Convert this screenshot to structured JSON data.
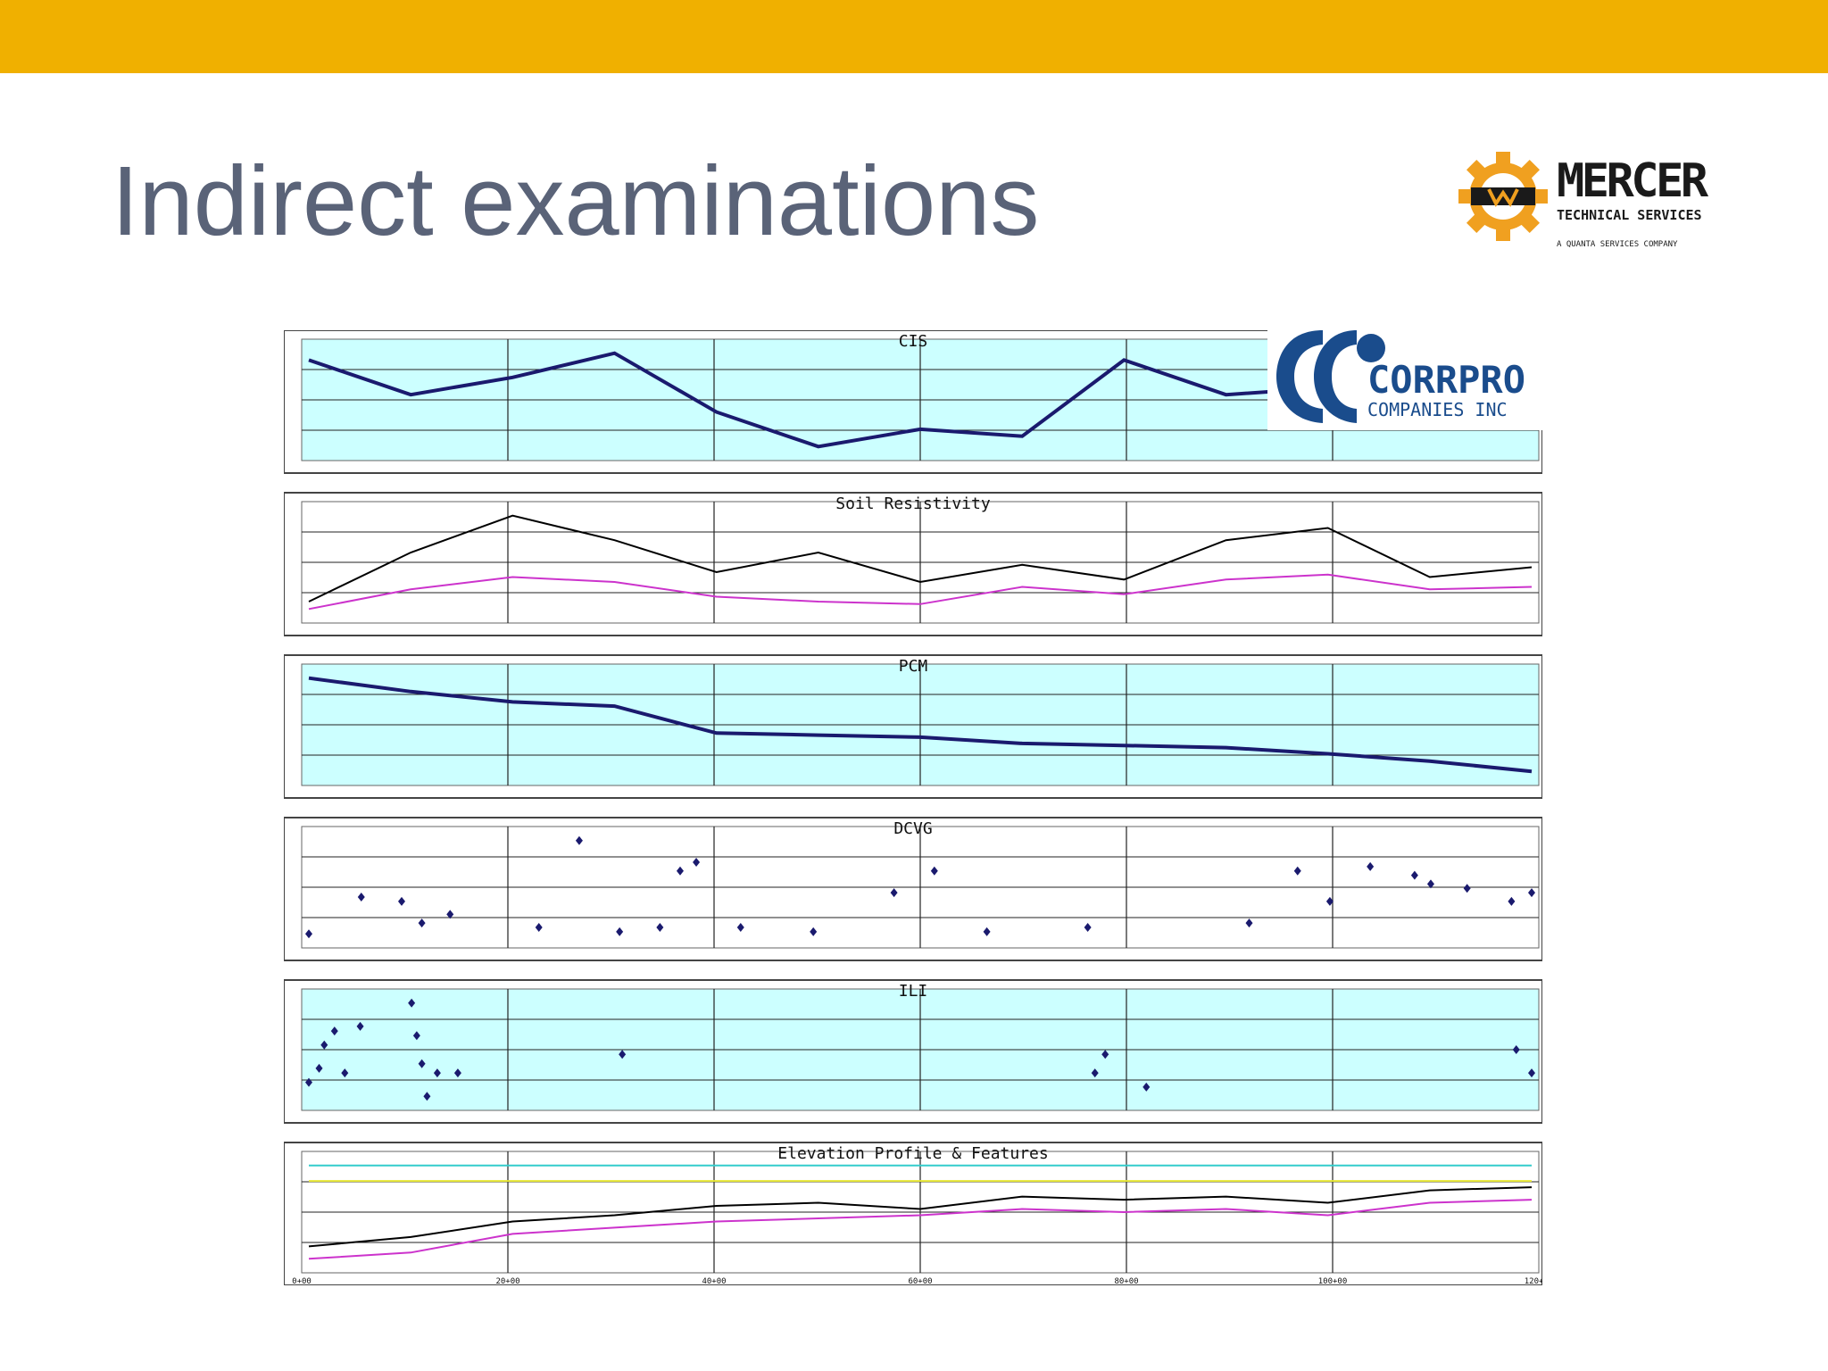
{
  "slide": {
    "title": "Indirect examinations",
    "bar_color": "#f0b000",
    "title_color": "#5a6378"
  },
  "logos": {
    "mercer": {
      "name": "MERCER",
      "subtitle": "TECHNICAL SERVICES",
      "tagline": "A QUANTA SERVICES COMPANY",
      "gear_color": "#f0a020"
    },
    "corrpro": {
      "name": "CORRPRO",
      "subtitle": "COMPANIES INC",
      "color": "#1a4c8c"
    }
  },
  "chart_data": [
    {
      "type": "line",
      "title": "CIS",
      "plot_background": "#ccffff",
      "grid": true,
      "x": [
        0,
        25,
        50,
        75,
        100,
        125,
        150,
        175,
        200,
        225,
        250,
        275,
        300
      ],
      "series": [
        {
          "values": [
            -1100,
            -1200,
            -1150,
            -1080,
            -1250,
            -1350,
            -1300,
            -1320,
            -1100,
            -1200,
            -1180,
            -1160,
            -1150
          ],
          "color": "#1a1a6e"
        }
      ]
    },
    {
      "type": "line",
      "title": "Soil Resistivity",
      "plot_background": "#ffffff",
      "grid": true,
      "x": [
        0,
        25,
        50,
        75,
        100,
        125,
        150,
        175,
        200,
        225,
        250,
        275,
        300
      ],
      "series": [
        {
          "values": [
            3000,
            5000,
            6500,
            5500,
            4200,
            5000,
            3800,
            4500,
            3900,
            5500,
            6000,
            4000,
            4400
          ],
          "color": "#000000"
        },
        {
          "values": [
            2700,
            3500,
            4000,
            3800,
            3200,
            3000,
            2900,
            3600,
            3300,
            3900,
            4100,
            3500,
            3600
          ],
          "color": "#cc33cc"
        }
      ]
    },
    {
      "type": "line",
      "title": "PCM",
      "plot_background": "#ccffff",
      "grid": true,
      "x": [
        0,
        25,
        50,
        75,
        100,
        125,
        150,
        175,
        200,
        225,
        250,
        275,
        300
      ],
      "series": [
        {
          "values": [
            135,
            122,
            112,
            108,
            82,
            80,
            78,
            72,
            70,
            68,
            62,
            55,
            45
          ],
          "color": "#1a1a6e"
        }
      ]
    },
    {
      "type": "scatter",
      "title": "DCVG",
      "plot_background": "#ffffff",
      "grid": true,
      "x": [
        5,
        18,
        28,
        33,
        40,
        62,
        72,
        82,
        92,
        97,
        101,
        112,
        130,
        150,
        160,
        173,
        198,
        238,
        250,
        258,
        268,
        279,
        283,
        292,
        303,
        308
      ],
      "series": [
        {
          "values": [
            0.5,
            9,
            8,
            3,
            5,
            2,
            22,
            1,
            2,
            15,
            17,
            2,
            1,
            10,
            15,
            1,
            2,
            3,
            15,
            8,
            16,
            14,
            12,
            11,
            8,
            10
          ],
          "color": "#1a1a6e"
        }
      ]
    },
    {
      "type": "scatter",
      "title": "ILI",
      "plot_background": "#ccffff",
      "grid": true,
      "x": [
        55,
        57,
        58,
        60,
        62,
        65,
        75,
        76,
        77,
        78,
        80,
        84,
        116,
        208,
        210,
        218,
        290,
        293
      ],
      "series": [
        {
          "values": [
            0.8,
            1.1,
            1.6,
            1.9,
            1.0,
            2.0,
            2.5,
            1.8,
            1.2,
            0.5,
            1.0,
            1.0,
            1.4,
            1.0,
            1.4,
            0.7,
            1.5,
            1.0
          ],
          "color": "#1a1a6e"
        }
      ]
    },
    {
      "type": "line",
      "title": "Elevation Profile & Features",
      "plot_background": "#ffffff",
      "grid": true,
      "x": [
        0,
        25,
        50,
        75,
        100,
        125,
        150,
        175,
        200,
        225,
        250,
        275,
        300
      ],
      "x_tick_labels": [
        "0+00",
        "20+00",
        "40+00",
        "60+00",
        "80+00",
        "100+00",
        "120+00"
      ],
      "series": [
        {
          "values": [
            12,
            15,
            20,
            22,
            25,
            26,
            24,
            28,
            27,
            28,
            26,
            30,
            31
          ],
          "color": "#000000"
        },
        {
          "values": [
            8,
            10,
            16,
            18,
            20,
            21,
            22,
            24,
            23,
            24,
            22,
            26,
            27
          ],
          "color": "#cc33cc"
        },
        {
          "values": [
            38,
            38,
            38,
            38,
            38,
            38,
            38,
            38,
            38,
            38,
            38,
            38,
            38
          ],
          "color": "#33cccc"
        },
        {
          "values": [
            33,
            33,
            33,
            33,
            33,
            33,
            33,
            33,
            33,
            33,
            33,
            33,
            33
          ],
          "color": "#e6e633"
        }
      ]
    }
  ]
}
